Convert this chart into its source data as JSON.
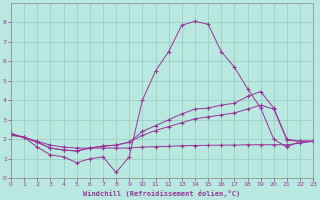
{
  "xlabel": "Windchill (Refroidissement éolien,°C)",
  "xlim": [
    0,
    23
  ],
  "ylim": [
    0,
    9
  ],
  "xticks": [
    0,
    1,
    2,
    3,
    4,
    5,
    6,
    7,
    8,
    9,
    10,
    11,
    12,
    13,
    14,
    15,
    16,
    17,
    18,
    19,
    20,
    21,
    22,
    23
  ],
  "yticks": [
    0,
    1,
    2,
    3,
    4,
    5,
    6,
    7,
    8
  ],
  "background_color": "#b8e8e0",
  "grid_color": "#99ccbb",
  "line_color": "#993399",
  "line1_y": [
    2.3,
    2.1,
    1.6,
    1.2,
    1.1,
    0.8,
    1.0,
    1.1,
    0.3,
    1.1,
    4.0,
    5.5,
    6.5,
    7.85,
    8.05,
    7.9,
    6.5,
    5.7,
    4.6,
    3.6,
    2.0,
    1.6,
    1.9,
    1.9
  ],
  "line2_y": [
    2.25,
    2.1,
    1.85,
    1.55,
    1.45,
    1.4,
    1.55,
    1.65,
    1.7,
    1.85,
    2.4,
    2.7,
    3.0,
    3.3,
    3.55,
    3.6,
    3.75,
    3.85,
    4.2,
    4.45,
    3.6,
    2.0,
    1.9,
    1.9
  ],
  "line3_y": [
    2.25,
    2.1,
    1.85,
    1.55,
    1.45,
    1.4,
    1.55,
    1.65,
    1.7,
    1.85,
    2.2,
    2.45,
    2.65,
    2.85,
    3.05,
    3.15,
    3.25,
    3.35,
    3.55,
    3.75,
    3.55,
    1.95,
    1.9,
    1.9
  ],
  "line4_y": [
    2.2,
    2.1,
    1.9,
    1.7,
    1.6,
    1.55,
    1.55,
    1.55,
    1.55,
    1.55,
    1.6,
    1.62,
    1.64,
    1.67,
    1.68,
    1.69,
    1.7,
    1.7,
    1.72,
    1.72,
    1.72,
    1.72,
    1.8,
    1.9
  ]
}
